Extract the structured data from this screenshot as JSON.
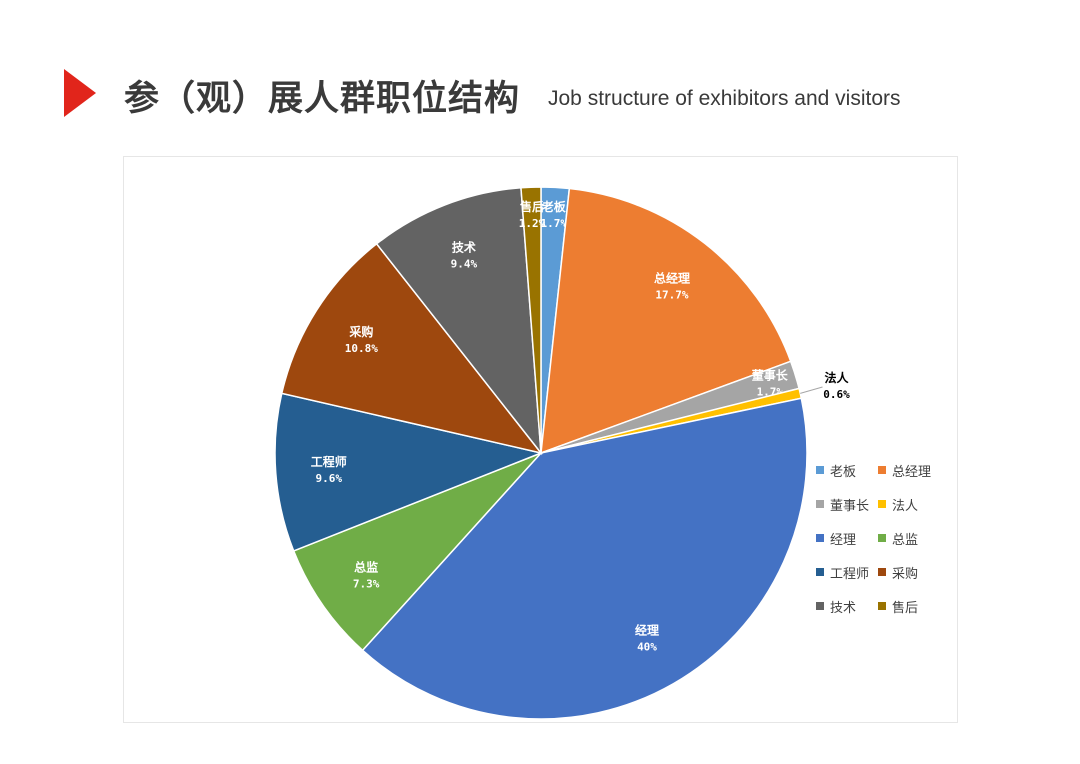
{
  "header": {
    "title_cn": "参（观）展人群职位结构",
    "title_en": "Job structure of exhibitors and visitors",
    "accent_color": "#e1251b"
  },
  "chart_data": {
    "type": "pie",
    "title": "",
    "legend_position": "right",
    "slices": [
      {
        "name": "老板",
        "value": 1.7,
        "label": "1.7%",
        "color": "#5b9bd5"
      },
      {
        "name": "总经理",
        "value": 17.7,
        "label": "17.7%",
        "color": "#ed7d31"
      },
      {
        "name": "董事长",
        "value": 1.7,
        "label": "1.7%",
        "color": "#a5a5a5"
      },
      {
        "name": "法人",
        "value": 0.6,
        "label": "0.6%",
        "color": "#ffc000"
      },
      {
        "name": "经理",
        "value": 40,
        "label": "40%",
        "color": "#4472c4"
      },
      {
        "name": "总监",
        "value": 7.3,
        "label": "7.3%",
        "color": "#70ad47"
      },
      {
        "name": "工程师",
        "value": 9.6,
        "label": "9.6%",
        "color": "#255e91"
      },
      {
        "name": "采购",
        "value": 10.8,
        "label": "10.8%",
        "color": "#9e480e"
      },
      {
        "name": "技术",
        "value": 9.4,
        "label": "9.4%",
        "color": "#636363"
      },
      {
        "name": "售后",
        "value": 1.2,
        "label": "1.2%",
        "color": "#997300"
      }
    ]
  }
}
